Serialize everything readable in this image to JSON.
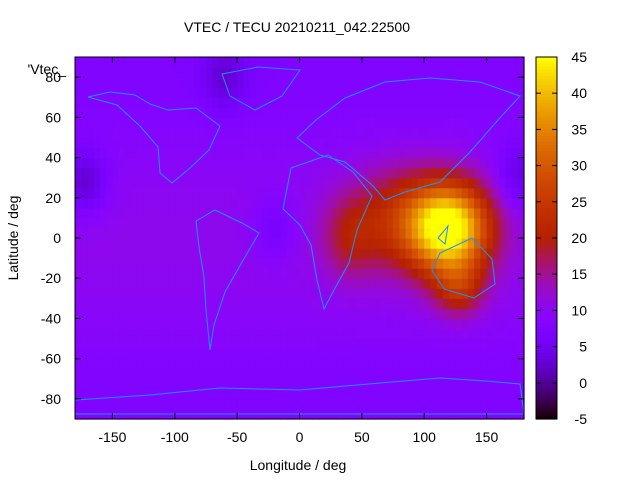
{
  "chart_data": {
    "type": "heatmap",
    "title": "VTEC / TECU 20210211_042.22500",
    "xlabel": "Longitude / deg",
    "ylabel": "Latitude / deg",
    "legend_key": "'Vtec_",
    "xlim": [
      -180,
      180
    ],
    "ylim": [
      -90,
      90
    ],
    "x_ticks": [
      "-150",
      "-100",
      "-50",
      "0",
      "50",
      "100",
      "150"
    ],
    "y_ticks": [
      "-80",
      "-60",
      "-40",
      "-20",
      "0",
      "20",
      "40",
      "60",
      "80"
    ],
    "colorbar": {
      "range": [
        -5,
        45
      ],
      "ticks": [
        "-5",
        "0",
        "5",
        "10",
        "15",
        "20",
        "25",
        "30",
        "35",
        "40",
        "45"
      ]
    },
    "features": [
      {
        "lon": 120,
        "lat": 5,
        "value": 45,
        "spread_lon": 32,
        "spread_lat": 22
      },
      {
        "lon": 80,
        "lat": 10,
        "value": 20,
        "spread_lon": 40,
        "spread_lat": 25
      },
      {
        "lon": 40,
        "lat": 0,
        "value": 16,
        "spread_lon": 22,
        "spread_lat": 20
      },
      {
        "lon": 128,
        "lat": -25,
        "value": 20,
        "spread_lon": 20,
        "spread_lat": 14
      }
    ],
    "background_value": 9,
    "low_regions": [
      {
        "lon": -172,
        "lat": 28,
        "value": 2
      },
      {
        "lon": 175,
        "lat": 30,
        "value": 3
      },
      {
        "lon": -60,
        "lat": 80,
        "value": 4
      },
      {
        "lon": -20,
        "lat": 5,
        "value": 5
      }
    ],
    "colors": {
      "coastline": "#1e90ff",
      "palette": "gnuplot"
    }
  }
}
